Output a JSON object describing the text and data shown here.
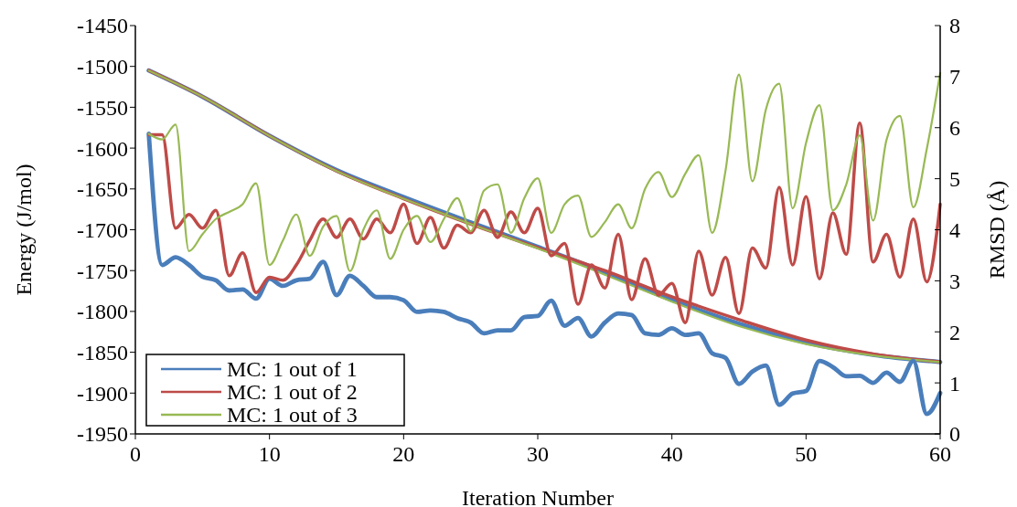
{
  "chart_data": {
    "type": "line",
    "xlabel": "Iteration Number",
    "ylabel": "Energy (J/mol)",
    "y2label": "RMSD (Å)",
    "xlim": [
      0,
      60
    ],
    "xticks": [
      0,
      10,
      20,
      30,
      40,
      50,
      60
    ],
    "ylim": [
      -1950,
      -1450
    ],
    "yticks": [
      -1950,
      -1900,
      -1850,
      -1800,
      -1750,
      -1700,
      -1650,
      -1600,
      -1550,
      -1500,
      -1450
    ],
    "y2lim": [
      0,
      8
    ],
    "y2ticks": [
      0,
      1,
      2,
      3,
      4,
      5,
      6,
      7,
      8
    ],
    "x": [
      1,
      2,
      3,
      4,
      5,
      6,
      7,
      8,
      9,
      10,
      11,
      12,
      13,
      14,
      15,
      16,
      17,
      18,
      19,
      20,
      21,
      22,
      23,
      24,
      25,
      26,
      27,
      28,
      29,
      30,
      31,
      32,
      33,
      34,
      35,
      36,
      37,
      38,
      39,
      40,
      41,
      42,
      43,
      44,
      45,
      46,
      47,
      48,
      49,
      50,
      51,
      52,
      53,
      54,
      55,
      56,
      57,
      58,
      59,
      60
    ],
    "legend": "bottom left",
    "grid": false,
    "marker": "none",
    "line_style": "solid",
    "series": [
      {
        "name": "MC: 1 out of 1",
        "color": "#4a7ebb",
        "x": [
          1,
          5,
          10,
          15,
          20,
          25,
          30,
          35,
          40,
          45,
          50,
          55,
          60
        ],
        "values": [
          -1505,
          -1537,
          -1585,
          -1627,
          -1660,
          -1691,
          -1721,
          -1752,
          -1786,
          -1815,
          -1838,
          -1853,
          -1862
        ]
      },
      {
        "name": "MC: 1 out of 2",
        "color": "#be4b48",
        "x": [
          1,
          5,
          10,
          15,
          20,
          25,
          30,
          35,
          40,
          45,
          50,
          55,
          60
        ],
        "values": [
          -1505,
          -1537,
          -1585,
          -1628,
          -1662,
          -1693,
          -1722,
          -1750,
          -1782,
          -1810,
          -1835,
          -1852,
          -1862
        ]
      },
      {
        "name": "MC: 1 out of 3",
        "color": "#98b954",
        "x": [
          1,
          5,
          10,
          15,
          20,
          25,
          30,
          35,
          40,
          45,
          50,
          55,
          60
        ],
        "values": [
          -1505,
          -1537,
          -1585,
          -1628,
          -1662,
          -1693,
          -1723,
          -1755,
          -1788,
          -1818,
          -1840,
          -1854,
          -1862
        ]
      },
      {
        "color": "#4a7ebb",
        "axis": "y2",
        "values": [
          5.88,
          3.31,
          3.46,
          3.31,
          3.08,
          3.01,
          2.81,
          2.83,
          2.65,
          3.04,
          2.9,
          3.01,
          3.04,
          3.37,
          2.72,
          3.1,
          2.9,
          2.68,
          2.68,
          2.62,
          2.39,
          2.42,
          2.39,
          2.27,
          2.18,
          1.97,
          2.03,
          2.03,
          2.29,
          2.31,
          2.61,
          2.12,
          2.27,
          1.91,
          2.18,
          2.36,
          2.33,
          1.97,
          1.94,
          2.07,
          1.94,
          1.97,
          1.58,
          1.49,
          0.98,
          1.22,
          1.34,
          0.57,
          0.79,
          0.84,
          1.43,
          1.31,
          1.13,
          1.14,
          1.0,
          1.2,
          1.02,
          1.43,
          0.39,
          0.8
        ]
      },
      {
        "color": "#be4b48",
        "axis": "y2",
        "values": [
          5.86,
          5.86,
          4.03,
          4.3,
          4.03,
          4.38,
          3.1,
          3.55,
          2.77,
          3.07,
          3.01,
          3.31,
          3.79,
          4.21,
          3.85,
          4.21,
          3.82,
          4.21,
          3.94,
          4.5,
          3.73,
          4.24,
          3.64,
          4.09,
          3.94,
          4.38,
          3.85,
          4.35,
          3.94,
          4.42,
          3.49,
          3.73,
          2.54,
          3.31,
          2.86,
          3.91,
          2.63,
          3.43,
          2.72,
          2.95,
          2.18,
          3.58,
          2.72,
          3.46,
          2.36,
          3.64,
          3.25,
          4.83,
          3.31,
          4.65,
          3.04,
          4.33,
          3.52,
          6.09,
          3.37,
          3.91,
          3.07,
          4.21,
          2.98,
          4.5
        ]
      },
      {
        "color": "#98b954",
        "axis": "y2",
        "values": [
          5.88,
          5.77,
          6.06,
          3.58,
          3.91,
          4.21,
          4.35,
          4.5,
          4.91,
          3.31,
          3.79,
          4.3,
          3.49,
          4.06,
          4.27,
          3.19,
          4.0,
          4.38,
          3.43,
          4.0,
          4.27,
          3.76,
          4.21,
          4.62,
          3.97,
          4.77,
          4.89,
          3.94,
          4.62,
          5.01,
          3.94,
          4.5,
          4.67,
          3.86,
          4.15,
          4.5,
          4.03,
          4.8,
          5.13,
          4.64,
          5.1,
          5.46,
          3.94,
          5.16,
          7.04,
          4.95,
          6.35,
          6.86,
          4.42,
          5.7,
          6.44,
          4.38,
          4.89,
          5.85,
          4.18,
          5.76,
          6.23,
          4.44,
          5.58,
          7.07
        ]
      }
    ]
  }
}
